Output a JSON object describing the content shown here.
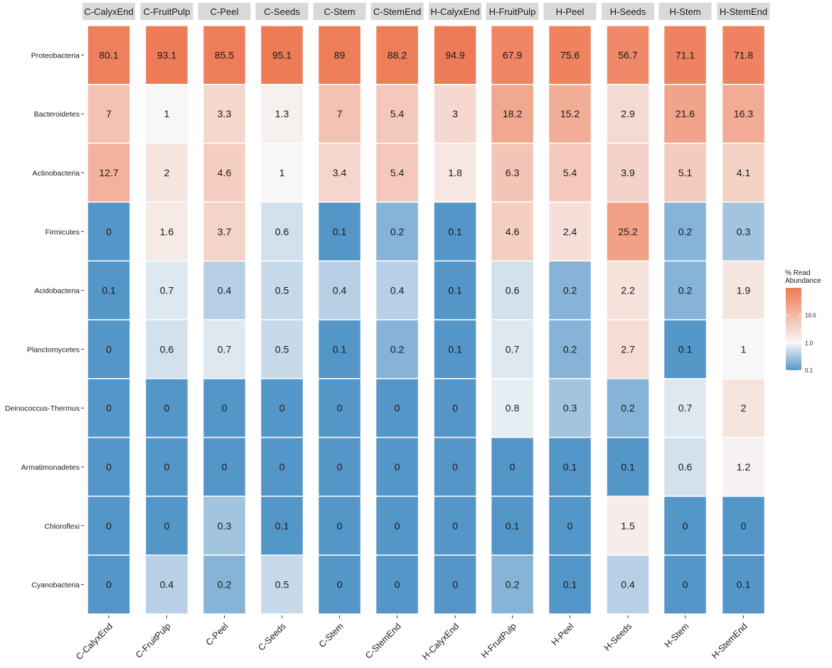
{
  "chart_data": {
    "type": "heatmap",
    "facets": [
      "C-CalyxEnd",
      "C-FruitPulp",
      "C-Peel",
      "C-Seeds",
      "C-Stem",
      "C-StemEnd",
      "H-CalyxEnd",
      "H-FruitPulp",
      "H-Peel",
      "H-Seeds",
      "H-Stem",
      "H-StemEnd"
    ],
    "x": [
      "C-CalyxEnd",
      "C-FruitPulp",
      "C-Peel",
      "C-Seeds",
      "C-Stem",
      "C-StemEnd",
      "H-CalyxEnd",
      "H-FruitPulp",
      "H-Peel",
      "H-Seeds",
      "H-Stem",
      "H-StemEnd"
    ],
    "y": [
      "Proteobacteria",
      "Bacteroidetes",
      "Actinobacteria",
      "Firmicutes",
      "Acidobacteria",
      "Planctomycetes",
      "Deinococcus-Thermus",
      "Armatimonadetes",
      "Chloroflexi",
      "Cyanobacteria"
    ],
    "values": [
      [
        80.1,
        93.1,
        85.5,
        95.1,
        89,
        88.2,
        94.9,
        67.9,
        75.6,
        56.7,
        71.1,
        71.8
      ],
      [
        7,
        1,
        3.3,
        1.3,
        7,
        5.4,
        3,
        18.2,
        15.2,
        2.9,
        21.6,
        16.3
      ],
      [
        12.7,
        2,
        4.6,
        1,
        3.4,
        5.4,
        1.8,
        6.3,
        5.4,
        3.9,
        5.1,
        4.1
      ],
      [
        0,
        1.6,
        3.7,
        0.6,
        0.1,
        0.2,
        0.1,
        4.6,
        2.4,
        25.2,
        0.2,
        0.3
      ],
      [
        0.1,
        0.7,
        0.4,
        0.5,
        0.4,
        0.4,
        0.1,
        0.6,
        0.2,
        2.2,
        0.2,
        1.9
      ],
      [
        0,
        0.6,
        0.7,
        0.5,
        0.1,
        0.2,
        0.1,
        0.7,
        0.2,
        2.7,
        0.1,
        1
      ],
      [
        0,
        0,
        0,
        0,
        0,
        0,
        0,
        0.8,
        0.3,
        0.2,
        0.7,
        2
      ],
      [
        0,
        0,
        0,
        0,
        0,
        0,
        0,
        0,
        0.1,
        0.1,
        0.6,
        1.2
      ],
      [
        0,
        0,
        0.3,
        0.1,
        0,
        0,
        0,
        0.1,
        0,
        1.5,
        0,
        0
      ],
      [
        0,
        0.4,
        0.2,
        0.5,
        0,
        0,
        0,
        0.2,
        0.1,
        0.4,
        0,
        0.1
      ]
    ],
    "colorscale": {
      "type": "log",
      "low": "#5596c9",
      "mid": "#f7f7f7",
      "high": "#ee7a55",
      "midpoint": 1.0,
      "range": [
        0.1,
        100
      ]
    },
    "legend": {
      "title_lines": [
        "% Read",
        "Abundance"
      ],
      "ticks": [
        0.1,
        1.0,
        10.0
      ],
      "tick_labels": [
        "0.1",
        "1.0",
        "10.0"
      ],
      "placement": "right"
    }
  }
}
